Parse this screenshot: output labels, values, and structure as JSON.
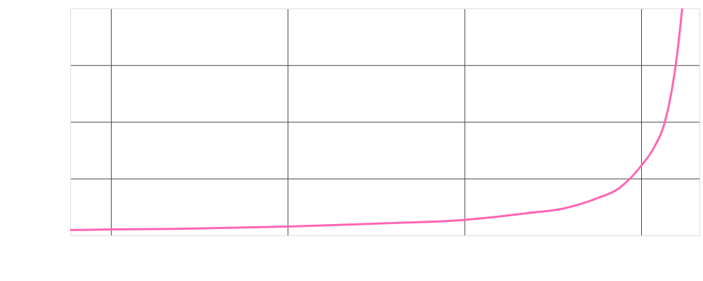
{
  "chart_data": {
    "type": "line",
    "x": [
      0.77,
      1.0,
      1.37,
      2.0,
      2.56,
      3.0,
      3.36,
      3.56,
      3.75,
      3.87,
      4.0,
      4.07,
      4.13,
      4.17,
      4.2,
      4.23
    ],
    "values": [
      0.1,
      0.11,
      0.12,
      0.16,
      0.22,
      0.28,
      0.4,
      0.48,
      0.66,
      0.83,
      1.24,
      1.55,
      1.98,
      2.54,
      3.16,
      4.0
    ],
    "color": "#ff66b3",
    "xlim": [
      0.77,
      4.33
    ],
    "xticks": [
      1,
      2,
      3,
      4
    ],
    "ylim": [
      0,
      4
    ],
    "yticks": [
      0,
      1,
      2,
      3,
      4
    ],
    "grid": true,
    "tick_labels": false
  }
}
